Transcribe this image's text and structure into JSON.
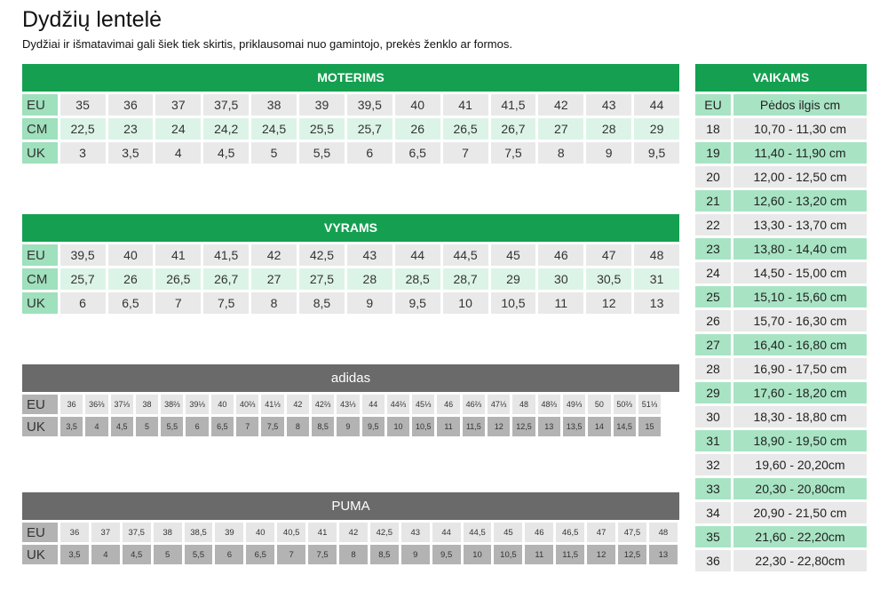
{
  "title": "Dydžių lentelė",
  "subtitle": "Dydžiai ir išmatavimai gali šiek tiek skirtis, priklausomai nuo gamintojo, prekės ženklo ar formos.",
  "women": {
    "header": "MOTERIMS",
    "rows": [
      {
        "label": "EU",
        "values": [
          "35",
          "36",
          "37",
          "37,5",
          "38",
          "39",
          "39,5",
          "40",
          "41",
          "41,5",
          "42",
          "43",
          "44"
        ]
      },
      {
        "label": "CM",
        "values": [
          "22,5",
          "23",
          "24",
          "24,2",
          "24,5",
          "25,5",
          "25,7",
          "26",
          "26,5",
          "26,7",
          "27",
          "28",
          "29"
        ]
      },
      {
        "label": "UK",
        "values": [
          "3",
          "3,5",
          "4",
          "4,5",
          "5",
          "5,5",
          "6",
          "6,5",
          "7",
          "7,5",
          "8",
          "9",
          "9,5"
        ]
      }
    ]
  },
  "men": {
    "header": "VYRAMS",
    "rows": [
      {
        "label": "EU",
        "values": [
          "39,5",
          "40",
          "41",
          "41,5",
          "42",
          "42,5",
          "43",
          "44",
          "44,5",
          "45",
          "46",
          "47",
          "48"
        ]
      },
      {
        "label": "CM",
        "values": [
          "25,7",
          "26",
          "26,5",
          "26,7",
          "27",
          "27,5",
          "28",
          "28,5",
          "28,7",
          "29",
          "30",
          "30,5",
          "31"
        ]
      },
      {
        "label": "UK",
        "values": [
          "6",
          "6,5",
          "7",
          "7,5",
          "8",
          "8,5",
          "9",
          "9,5",
          "10",
          "10,5",
          "11",
          "12",
          "13"
        ]
      }
    ]
  },
  "adidas": {
    "header": "adidas",
    "rows": [
      {
        "label": "EU",
        "values": [
          "36",
          "36⅔",
          "37⅓",
          "38",
          "38⅔",
          "39⅓",
          "40",
          "40⅔",
          "41⅓",
          "42",
          "42⅔",
          "43⅓",
          "44",
          "44⅔",
          "45⅓",
          "46",
          "46⅔",
          "47⅓",
          "48",
          "48⅔",
          "49⅓",
          "50",
          "50⅔",
          "51⅓"
        ]
      },
      {
        "label": "UK",
        "values": [
          "3,5",
          "4",
          "4,5",
          "5",
          "5,5",
          "6",
          "6,5",
          "7",
          "7,5",
          "8",
          "8,5",
          "9",
          "9,5",
          "10",
          "10,5",
          "11",
          "11,5",
          "12",
          "12,5",
          "13",
          "13,5",
          "14",
          "14,5",
          "15"
        ]
      }
    ]
  },
  "puma": {
    "header": "PUMA",
    "rows": [
      {
        "label": "EU",
        "values": [
          "36",
          "37",
          "37,5",
          "38",
          "38,5",
          "39",
          "40",
          "40,5",
          "41",
          "42",
          "42,5",
          "43",
          "44",
          "44,5",
          "45",
          "46",
          "46,5",
          "47",
          "47,5",
          "48"
        ]
      },
      {
        "label": "UK",
        "values": [
          "3,5",
          "4",
          "4,5",
          "5",
          "5,5",
          "6",
          "6,5",
          "7",
          "7,5",
          "8",
          "8,5",
          "9",
          "9,5",
          "10",
          "10,5",
          "11",
          "11,5",
          "12",
          "12,5",
          "13"
        ]
      }
    ]
  },
  "kids": {
    "header": "VAIKAMS",
    "col_eu": "EU",
    "col_cm": "Pėdos ilgis cm",
    "rows": [
      {
        "eu": "18",
        "cm": "10,70 - 11,30 cm"
      },
      {
        "eu": "19",
        "cm": "11,40 - 11,90 cm"
      },
      {
        "eu": "20",
        "cm": "12,00 - 12,50 cm"
      },
      {
        "eu": "21",
        "cm": "12,60 - 13,20 cm"
      },
      {
        "eu": "22",
        "cm": "13,30 - 13,70 cm"
      },
      {
        "eu": "23",
        "cm": "13,80 - 14,40 cm"
      },
      {
        "eu": "24",
        "cm": "14,50 - 15,00 cm"
      },
      {
        "eu": "25",
        "cm": "15,10 - 15,60 cm"
      },
      {
        "eu": "26",
        "cm": "15,70 - 16,30 cm"
      },
      {
        "eu": "27",
        "cm": "16,40 - 16,80 cm"
      },
      {
        "eu": "28",
        "cm": "16,90 - 17,50 cm"
      },
      {
        "eu": "29",
        "cm": "17,60 - 18,20 cm"
      },
      {
        "eu": "30",
        "cm": "18,30 - 18,80 cm"
      },
      {
        "eu": "31",
        "cm": "18,90 - 19,50 cm"
      },
      {
        "eu": "32",
        "cm": "19,60 - 20,20cm"
      },
      {
        "eu": "33",
        "cm": "20,30 - 20,80cm"
      },
      {
        "eu": "34",
        "cm": "20,90 - 21,50 cm"
      },
      {
        "eu": "35",
        "cm": "21,60 - 22,20cm"
      },
      {
        "eu": "36",
        "cm": "22,30 - 22,80cm"
      }
    ]
  }
}
